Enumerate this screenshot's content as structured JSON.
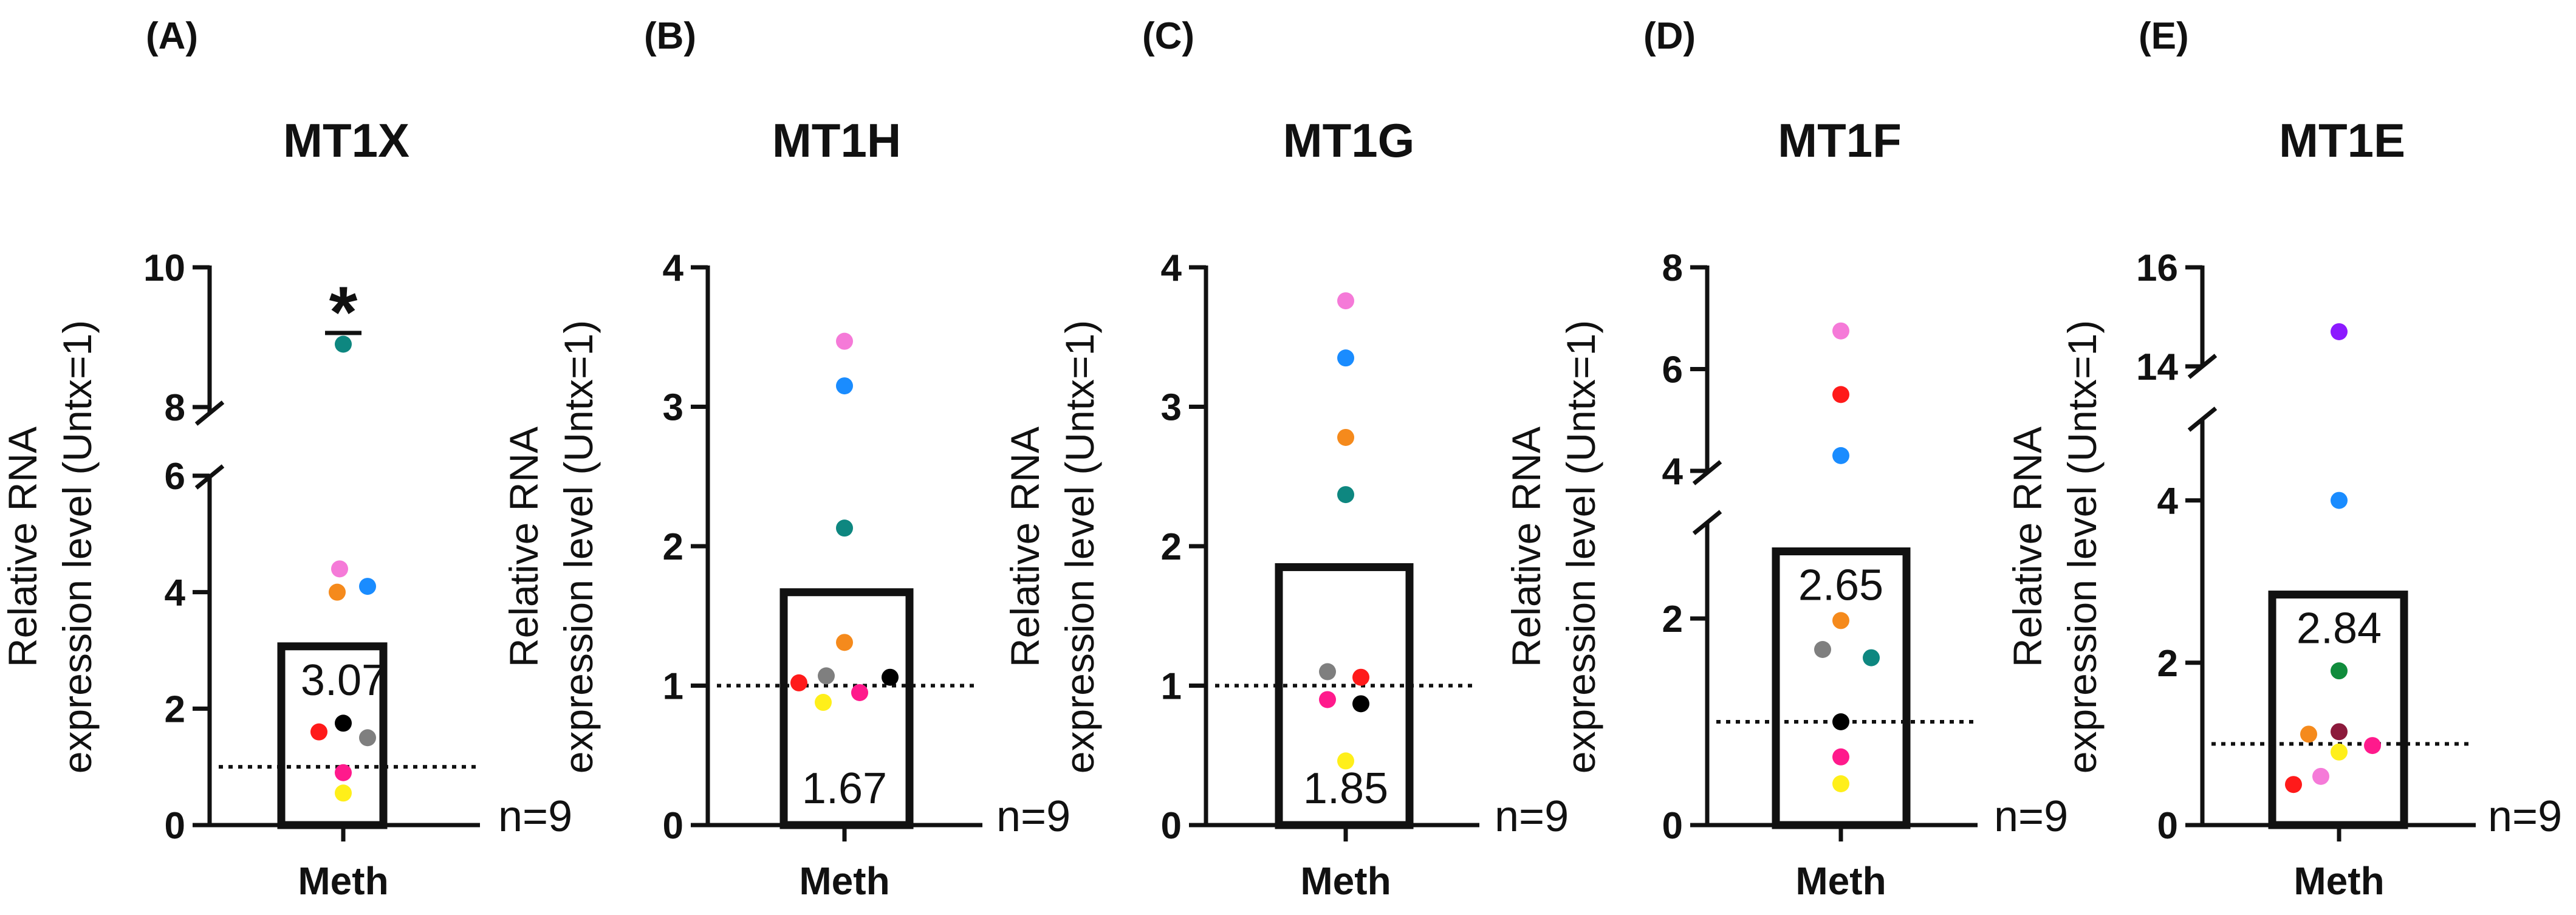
{
  "chart_data": [
    {
      "type": "bar",
      "panel": "(A)",
      "title": "MT1X",
      "ylabel": [
        "Relative RNA",
        "expression level (Untx=1)"
      ],
      "categories": [
        "Meth"
      ],
      "values": [
        3.07
      ],
      "mean_label": "3.07",
      "n_label": "n=9",
      "significance": "*",
      "reference_line": 1,
      "axis_break": {
        "lower": [
          0,
          6
        ],
        "upper": [
          8,
          10
        ]
      },
      "yticks": [
        0,
        2,
        4,
        6,
        8,
        10
      ],
      "points": [
        {
          "color": "#0e8780",
          "value": 8.9
        },
        {
          "color": "#f57ad8",
          "value": 4.4
        },
        {
          "color": "#1a8cff",
          "value": 4.1
        },
        {
          "color": "#f58a1c",
          "value": 4.0
        },
        {
          "color": "#000000",
          "value": 1.75
        },
        {
          "color": "#ff1a1a",
          "value": 1.6
        },
        {
          "color": "#7f7f7f",
          "value": 1.5
        },
        {
          "color": "#ff1a8c",
          "value": 0.9
        },
        {
          "color": "#ffef1a",
          "value": 0.55
        }
      ]
    },
    {
      "type": "bar",
      "panel": "(B)",
      "title": "MT1H",
      "ylabel": [
        "Relative RNA",
        "expression level (Untx=1)"
      ],
      "categories": [
        "Meth"
      ],
      "values": [
        1.67
      ],
      "mean_label": "1.67",
      "n_label": "n=9",
      "reference_line": 1,
      "ylim": [
        0,
        4
      ],
      "yticks": [
        0,
        1,
        2,
        3,
        4
      ],
      "points": [
        {
          "color": "#f57ad8",
          "value": 3.47
        },
        {
          "color": "#1a8cff",
          "value": 3.15
        },
        {
          "color": "#0e8780",
          "value": 2.13
        },
        {
          "color": "#f58a1c",
          "value": 1.31
        },
        {
          "color": "#ff1a1a",
          "value": 1.02
        },
        {
          "color": "#7f7f7f",
          "value": 1.07
        },
        {
          "color": "#000000",
          "value": 1.06
        },
        {
          "color": "#ff1a8c",
          "value": 0.95
        },
        {
          "color": "#ffef1a",
          "value": 0.88
        }
      ]
    },
    {
      "type": "bar",
      "panel": "(C)",
      "title": "MT1G",
      "ylabel": [
        "Relative RNA",
        "expression level (Untx=1)"
      ],
      "categories": [
        "Meth"
      ],
      "values": [
        1.85
      ],
      "mean_label": "1.85",
      "n_label": "n=9",
      "reference_line": 1,
      "ylim": [
        0,
        4
      ],
      "yticks": [
        0,
        1,
        2,
        3,
        4
      ],
      "points": [
        {
          "color": "#f57ad8",
          "value": 3.76
        },
        {
          "color": "#1a8cff",
          "value": 3.35
        },
        {
          "color": "#f58a1c",
          "value": 2.78
        },
        {
          "color": "#0e8780",
          "value": 2.37
        },
        {
          "color": "#7f7f7f",
          "value": 1.1
        },
        {
          "color": "#ff1a1a",
          "value": 1.06
        },
        {
          "color": "#ff1a8c",
          "value": 0.9
        },
        {
          "color": "#000000",
          "value": 0.87
        },
        {
          "color": "#ffef1a",
          "value": 0.46
        }
      ]
    },
    {
      "type": "bar",
      "panel": "(D)",
      "title": "MT1F",
      "ylabel": [
        "Relative RNA",
        "expression level (Untx=1)"
      ],
      "categories": [
        "Meth"
      ],
      "values": [
        2.65
      ],
      "mean_label": "2.65",
      "n_label": "n=9",
      "reference_line": 1,
      "axis_break": {
        "lower": [
          0,
          2.9
        ],
        "upper": [
          4,
          8
        ]
      },
      "yticks": [
        0,
        2,
        4,
        6,
        8
      ],
      "points": [
        {
          "color": "#f57ad8",
          "value": 6.75
        },
        {
          "color": "#ff1a1a",
          "value": 5.5
        },
        {
          "color": "#1a8cff",
          "value": 4.3
        },
        {
          "color": "#f58a1c",
          "value": 1.98
        },
        {
          "color": "#7f7f7f",
          "value": 1.7
        },
        {
          "color": "#0e8780",
          "value": 1.62
        },
        {
          "color": "#000000",
          "value": 1.0
        },
        {
          "color": "#ff1a8c",
          "value": 0.66
        },
        {
          "color": "#ffef1a",
          "value": 0.4
        }
      ]
    },
    {
      "type": "bar",
      "panel": "(E)",
      "title": "MT1E",
      "ylabel": [
        "Relative RNA",
        "expression level (Untx=1)"
      ],
      "categories": [
        "Meth"
      ],
      "values": [
        2.84
      ],
      "mean_label": "2.84",
      "n_label": "n=9",
      "reference_line": 1,
      "axis_break": {
        "lower": [
          0,
          5
        ],
        "upper": [
          14,
          16
        ]
      },
      "yticks": [
        0,
        2,
        4,
        14,
        16
      ],
      "points": [
        {
          "color": "#8c1aff",
          "value": 14.7
        },
        {
          "color": "#1a8cff",
          "value": 4.0
        },
        {
          "color": "#108c3c",
          "value": 1.9
        },
        {
          "color": "#8c1a3c",
          "value": 1.15
        },
        {
          "color": "#f58a1c",
          "value": 1.12
        },
        {
          "color": "#ff1a8c",
          "value": 0.98
        },
        {
          "color": "#ffef1a",
          "value": 0.9
        },
        {
          "color": "#f57ad8",
          "value": 0.6
        },
        {
          "color": "#ff1a1a",
          "value": 0.5
        }
      ]
    }
  ]
}
